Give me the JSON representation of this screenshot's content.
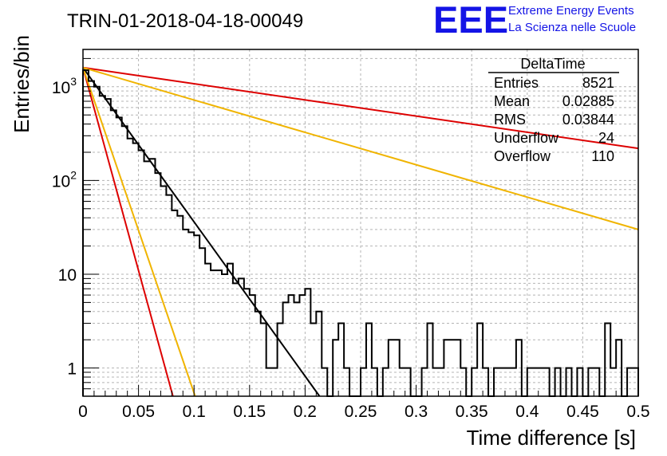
{
  "chart_data": {
    "type": "step-histogram",
    "title": "TRIN-01-2018-04-18-00049",
    "xlabel": "Time difference [s]",
    "ylabel": "Entries/bin",
    "xlim": [
      0,
      0.5
    ],
    "ylim": [
      0.5,
      2500
    ],
    "y_scale": "log",
    "grid": true,
    "x_ticks": [
      {
        "v": 0,
        "label": "0"
      },
      {
        "v": 0.05,
        "label": "0.05"
      },
      {
        "v": 0.1,
        "label": "0.1"
      },
      {
        "v": 0.15,
        "label": "0.15"
      },
      {
        "v": 0.2,
        "label": "0.2"
      },
      {
        "v": 0.25,
        "label": "0.25"
      },
      {
        "v": 0.3,
        "label": "0.3"
      },
      {
        "v": 0.35,
        "label": "0.35"
      },
      {
        "v": 0.4,
        "label": "0.4"
      },
      {
        "v": 0.45,
        "label": "0.45"
      },
      {
        "v": 0.5,
        "label": "0.5"
      }
    ],
    "y_ticks": [
      {
        "v": 1,
        "label": "1"
      },
      {
        "v": 10,
        "label": "10"
      },
      {
        "v": 100,
        "label": "10",
        "sup": "2"
      },
      {
        "v": 1000,
        "label": "10",
        "sup": "3"
      }
    ],
    "bin_width": 0.005,
    "values": [
      1500,
      1150,
      1000,
      800,
      740,
      560,
      470,
      380,
      280,
      250,
      210,
      160,
      170,
      120,
      87,
      70,
      48,
      42,
      30,
      28,
      26,
      19,
      13,
      11,
      11,
      10,
      13,
      8,
      9,
      7,
      6,
      4,
      3,
      1,
      1,
      3,
      5,
      6,
      5,
      6,
      7,
      3,
      4,
      1,
      0.5,
      2,
      3,
      1,
      0.5,
      0.5,
      1,
      3,
      1,
      0.5,
      1,
      2,
      2,
      1,
      1,
      0.5,
      0.5,
      1,
      3,
      1,
      1,
      2,
      2,
      2,
      1,
      0.5,
      1,
      3,
      1,
      0.5,
      1,
      1,
      1,
      1,
      2,
      0.5,
      1,
      1,
      1,
      1,
      0.5,
      1,
      0.5,
      1,
      0.5,
      1,
      0.5,
      1,
      1,
      0.5,
      3,
      1,
      2,
      0.5,
      1,
      1
    ],
    "fit_lines": [
      {
        "color": "#000000",
        "y0": 1600,
        "y1": 0.5,
        "x1": 0.213
      },
      {
        "color": "#dd0000",
        "y0": 1600,
        "y1": 0.5,
        "x1": 0.081
      },
      {
        "color": "#f0b400",
        "y0": 1600,
        "y1": 0.5,
        "x1": 0.101
      },
      {
        "color": "#dd0000",
        "y0": 1600,
        "y1": 220,
        "x1": 0.5
      },
      {
        "color": "#f0b400",
        "y0": 1600,
        "y1": 30,
        "x1": 0.5
      }
    ],
    "stats": {
      "title": "DeltaTime",
      "rows": [
        {
          "label": "Entries",
          "value": "8521"
        },
        {
          "label": "Mean",
          "value": "0.02885"
        },
        {
          "label": "RMS",
          "value": "0.03844"
        },
        {
          "label": "Underflow",
          "value": "24"
        },
        {
          "label": "Overflow",
          "value": "110"
        }
      ]
    }
  },
  "logo": {
    "mark": "EEE",
    "line1": "Extreme Energy Events",
    "line2": "La Scienza nelle Scuole",
    "color": "#1414e6"
  }
}
